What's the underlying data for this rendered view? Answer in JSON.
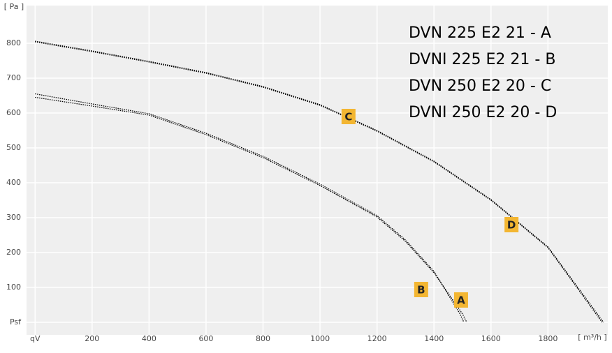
{
  "chart_data": {
    "type": "line",
    "x_label": "[ m³/h ]",
    "y_label": "[ Pa ]",
    "xlim": [
      -30,
      2010
    ],
    "ylim": [
      -36,
      908
    ],
    "xticks": [
      {
        "value": 0,
        "label": "qV"
      },
      200,
      400,
      600,
      800,
      1000,
      1200,
      1400,
      1600,
      1800
    ],
    "yticks": [
      {
        "value": 0,
        "label": "Psf"
      },
      100,
      200,
      300,
      400,
      500,
      600,
      700,
      800
    ],
    "grid": true,
    "legend": "top-right",
    "series": [
      {
        "name": "DVN 225 E2 21 - A",
        "color": "#000000",
        "x": [
          0,
          200,
          400,
          600,
          800,
          1000,
          1200,
          1300,
          1400,
          1500,
          1515
        ],
        "values": [
          645,
          620,
          594,
          538,
          472,
          392,
          302,
          232,
          142,
          24,
          0
        ]
      },
      {
        "name": "DVNI 225 E2 21 - B",
        "color": "#000000",
        "x": [
          0,
          200,
          400,
          600,
          800,
          1000,
          1200,
          1300,
          1400,
          1490,
          1505
        ],
        "values": [
          655,
          626,
          598,
          542,
          476,
          396,
          306,
          236,
          146,
          26,
          0
        ]
      },
      {
        "name": "DVN 250 E2 20 - C",
        "color": "#000000",
        "x": [
          0,
          200,
          400,
          600,
          800,
          1000,
          1200,
          1400,
          1600,
          1800,
          1990
        ],
        "values": [
          804,
          776,
          746,
          714,
          674,
          622,
          548,
          460,
          350,
          214,
          0
        ]
      },
      {
        "name": "DVNI 250 E2 20 - D",
        "color": "#000000",
        "x": [
          0,
          200,
          400,
          600,
          800,
          1000,
          1200,
          1400,
          1600,
          1800,
          1995
        ],
        "values": [
          806,
          778,
          748,
          716,
          676,
          624,
          550,
          462,
          352,
          216,
          0
        ]
      }
    ],
    "annotations": [
      {
        "text": "A",
        "x": 1495,
        "y": 64
      },
      {
        "text": "B",
        "x": 1355,
        "y": 94
      },
      {
        "text": "C",
        "x": 1100,
        "y": 590
      },
      {
        "text": "D",
        "x": 1672,
        "y": 280
      }
    ]
  }
}
